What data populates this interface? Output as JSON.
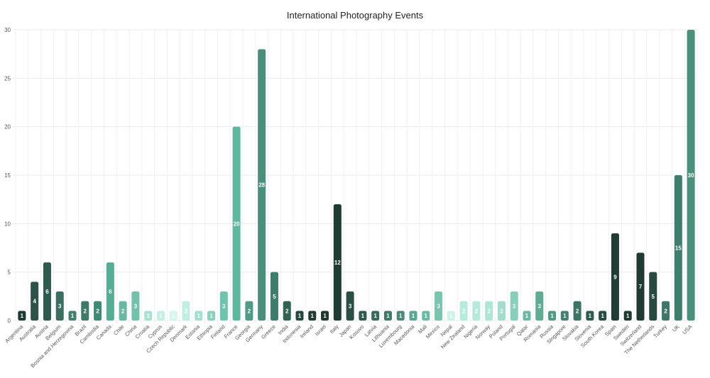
{
  "chart_data": {
    "type": "bar",
    "title": "International Photography Events",
    "xlabel": "",
    "ylabel": "",
    "ylim": [
      0,
      30
    ],
    "yticks": [
      0,
      5,
      10,
      15,
      20,
      25,
      30
    ],
    "grid": true,
    "categories": [
      "Argentina",
      "Australia",
      "Austria",
      "Belgium",
      "Bosnia and Herzegovina",
      "Brazil",
      "Cambodia",
      "Canada",
      "Chile",
      "China",
      "Croatia",
      "Cyprus",
      "Czech Republic",
      "Denmark",
      "Estonia",
      "Ethiopia",
      "Finland",
      "France",
      "Georgia",
      "Germany",
      "Greece",
      "India",
      "Indonesia",
      "Ireland",
      "Israel",
      "Italy",
      "Japan",
      "Kosovo",
      "Latvia",
      "Lithuania",
      "Luxembourg",
      "Macedonia",
      "Mali",
      "Mexico",
      "Nepal",
      "New Zealand",
      "Nigeria",
      "Norway",
      "Poland",
      "Portugal",
      "Qatar",
      "Romania",
      "Russia",
      "Singapore",
      "Slovakia",
      "Slovenia",
      "South Korea",
      "Spain",
      "Sweden",
      "Switzerland",
      "The Netherlands",
      "Turkey",
      "UK",
      "USA"
    ],
    "values": [
      1,
      4,
      6,
      3,
      1,
      2,
      2,
      6,
      2,
      3,
      1,
      1,
      1,
      2,
      1,
      1,
      3,
      20,
      2,
      28,
      5,
      2,
      1,
      1,
      1,
      12,
      3,
      1,
      1,
      1,
      1,
      1,
      1,
      3,
      1,
      2,
      2,
      2,
      2,
      3,
      1,
      3,
      1,
      1,
      2,
      1,
      1,
      9,
      1,
      7,
      5,
      2,
      15,
      30
    ],
    "colors": [
      "#1e3b32",
      "#2d5248",
      "#2f5b4f",
      "#3a6f60",
      "#447f6e",
      "#3f7a69",
      "#3f8a74",
      "#55ad95",
      "#68b8a2",
      "#72c2ab",
      "#a8e3d2",
      "#c4f0e3",
      "#d5f6ec",
      "#c0efe1",
      "#a6dfcf",
      "#8ccfbd",
      "#6ec4ac",
      "#5eb89f",
      "#4f9b85",
      "#4a8f7b",
      "#3e7c6b",
      "#2f6454",
      "#26483e",
      "#223c35",
      "#1f372f",
      "#1f3c33",
      "#2b4f44",
      "#30594d",
      "#386a5b",
      "#407a69",
      "#4a8c79",
      "#5aa690",
      "#6cbaa3",
      "#79c5af",
      "#cdf3e8",
      "#b7ecdc",
      "#b5eadb",
      "#aee6d6",
      "#a2ddcc",
      "#86cfba",
      "#6db8a3",
      "#5fac95",
      "#51997f",
      "#457f6f",
      "#3c7565",
      "#2e5b4e",
      "#274c41",
      "#1f3d34",
      "#1d3a31",
      "#1f3a32",
      "#27493f",
      "#3d7767",
      "#3f7d6c",
      "#4b907c"
    ]
  }
}
